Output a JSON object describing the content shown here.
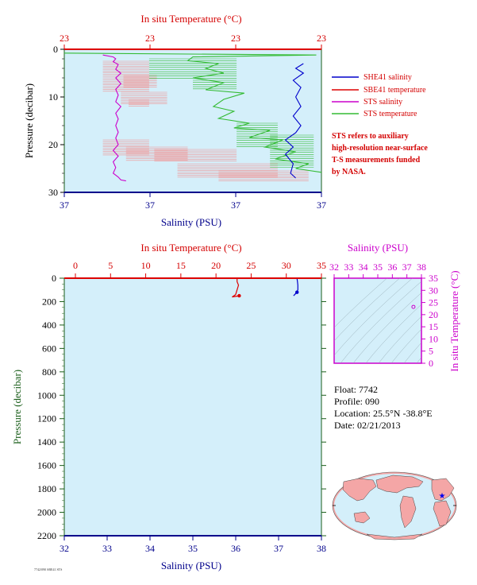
{
  "chart_data": [
    {
      "type": "line",
      "top_title": "In situ Temperature (°C)",
      "top_ticks": [
        "23",
        "23",
        "23",
        "23"
      ],
      "bottom_title": "Salinity (PSU)",
      "bottom_ticks": [
        "37",
        "37",
        "37",
        "37"
      ],
      "left_title": "Pressure (decibar)",
      "y_ticks": [
        "0",
        "10",
        "20",
        "30"
      ],
      "ylim": [
        0,
        30
      ],
      "legend": [
        {
          "label": "SHE41 salinity",
          "color": "#0000cc"
        },
        {
          "label": "SBE41 temperature",
          "color": "#dd0000"
        },
        {
          "label": "STS salinity",
          "color": "#cc00cc"
        },
        {
          "label": "STS temperature",
          "color": "#33bb33"
        }
      ],
      "note": [
        "STS refers to auxiliary",
        "high-resolution near-surface",
        "T-S measurements funded",
        "by NASA."
      ],
      "series": [
        {
          "name": "STS salinity",
          "color": "#cc00cc",
          "points": [
            [
              0.15,
              1.2
            ],
            [
              0.19,
              1.6
            ],
            [
              0.2,
              2.0
            ],
            [
              0.19,
              2.6
            ],
            [
              0.21,
              3.2
            ],
            [
              0.2,
              4.2
            ],
            [
              0.22,
              5.0
            ],
            [
              0.2,
              6.0
            ],
            [
              0.22,
              7.2
            ],
            [
              0.2,
              8.4
            ],
            [
              0.21,
              9.6
            ],
            [
              0.2,
              11.0
            ],
            [
              0.22,
              12.0
            ],
            [
              0.2,
              13.4
            ],
            [
              0.21,
              14.6
            ],
            [
              0.2,
              16.0
            ],
            [
              0.21,
              17.4
            ],
            [
              0.2,
              18.6
            ],
            [
              0.21,
              20.0
            ],
            [
              0.19,
              21.2
            ],
            [
              0.21,
              22.4
            ],
            [
              0.19,
              23.6
            ],
            [
              0.2,
              24.8
            ],
            [
              0.19,
              26.0
            ],
            [
              0.21,
              26.8
            ],
            [
              0.22,
              27.4
            ],
            [
              0.24,
              27.6
            ]
          ]
        },
        {
          "name": "STS temperature",
          "color": "#33bb33",
          "points": [
            [
              0.0,
              0.8
            ],
            [
              0.98,
              1.2
            ],
            [
              0.5,
              1.6
            ],
            [
              0.48,
              2.4
            ],
            [
              0.6,
              3.0
            ],
            [
              0.55,
              4.0
            ],
            [
              0.62,
              5.0
            ],
            [
              0.5,
              6.0
            ],
            [
              0.62,
              7.0
            ],
            [
              0.55,
              8.5
            ],
            [
              0.7,
              9.2
            ],
            [
              0.62,
              10.5
            ],
            [
              0.58,
              12.0
            ],
            [
              0.66,
              13.0
            ],
            [
              0.6,
              14.5
            ],
            [
              0.72,
              15.5
            ],
            [
              0.66,
              16.5
            ],
            [
              0.8,
              17.0
            ],
            [
              0.72,
              18.5
            ],
            [
              0.85,
              19.0
            ],
            [
              0.78,
              20.5
            ],
            [
              0.9,
              21.5
            ],
            [
              0.82,
              23.0
            ],
            [
              0.95,
              24.0
            ],
            [
              0.9,
              25.0
            ],
            [
              1.0,
              25.8
            ]
          ]
        },
        {
          "name": "SHE41 salinity",
          "color": "#0000cc",
          "points": [
            [
              0.93,
              3.0
            ],
            [
              0.9,
              4.0
            ],
            [
              0.93,
              5.0
            ],
            [
              0.89,
              6.5
            ],
            [
              0.92,
              8.0
            ],
            [
              0.9,
              10.0
            ],
            [
              0.92,
              12.0
            ],
            [
              0.89,
              14.0
            ],
            [
              0.92,
              16.0
            ],
            [
              0.9,
              17.5
            ],
            [
              0.86,
              19.0
            ],
            [
              0.89,
              20.5
            ],
            [
              0.86,
              22.0
            ],
            [
              0.89,
              24.0
            ],
            [
              0.88,
              26.0
            ],
            [
              0.9,
              27.0
            ]
          ]
        },
        {
          "name": "SBE41 temperature",
          "color": "#dd0000",
          "points": [
            [
              0.0,
              0.0
            ],
            [
              1.0,
              0.0
            ]
          ]
        }
      ]
    },
    {
      "type": "line",
      "top_title": "In situ Temperature (°C)",
      "top_ticks": [
        "0",
        "5",
        "10",
        "15",
        "20",
        "25",
        "30",
        "35"
      ],
      "bottom_title": "Salinity (PSU)",
      "bottom_ticks": [
        "32",
        "33",
        "34",
        "35",
        "36",
        "37",
        "38"
      ],
      "left_title": "Pressure (decibar)",
      "y_ticks": [
        "0",
        "200",
        "400",
        "600",
        "800",
        "1000",
        "1200",
        "1400",
        "1600",
        "1800",
        "2000",
        "2200"
      ],
      "xlim_temp": [
        0,
        35
      ],
      "xlim_sal": [
        32,
        38
      ],
      "ylim": [
        0,
        2200
      ],
      "series": [
        {
          "name": "SBE41 temperature",
          "color": "#dd0000",
          "points": [
            [
              23.0,
              0
            ],
            [
              23.0,
              30
            ],
            [
              23.2,
              60
            ],
            [
              23.0,
              100
            ],
            [
              22.8,
              140
            ],
            [
              22.3,
              160
            ],
            [
              23.3,
              150
            ]
          ]
        },
        {
          "name": "SBE41 salinity",
          "color": "#0000cc",
          "points": [
            [
              37.43,
              0
            ],
            [
              37.44,
              30
            ],
            [
              37.45,
              60
            ],
            [
              37.45,
              100
            ],
            [
              37.4,
              130
            ],
            [
              37.35,
              150
            ],
            [
              37.43,
              120
            ]
          ]
        }
      ]
    },
    {
      "type": "scatter",
      "top_title": "Salinity (PSU)",
      "top_ticks": [
        "32",
        "33",
        "34",
        "35",
        "36",
        "37",
        "38"
      ],
      "right_title": "In situ Temperature (°C)",
      "right_ticks": [
        "0",
        "5",
        "10",
        "15",
        "20",
        "25",
        "30",
        "35"
      ],
      "xlim": [
        32,
        38
      ],
      "ylim": [
        0,
        35
      ],
      "points": [
        [
          37.45,
          23.2
        ]
      ]
    }
  ],
  "info": {
    "float": "Float: 7742",
    "profile": "Profile: 090",
    "location": "Location: 25.5°N -38.8°E",
    "date": "Date: 02/21/2013"
  },
  "footer": "7742/090 SBE41 STS"
}
